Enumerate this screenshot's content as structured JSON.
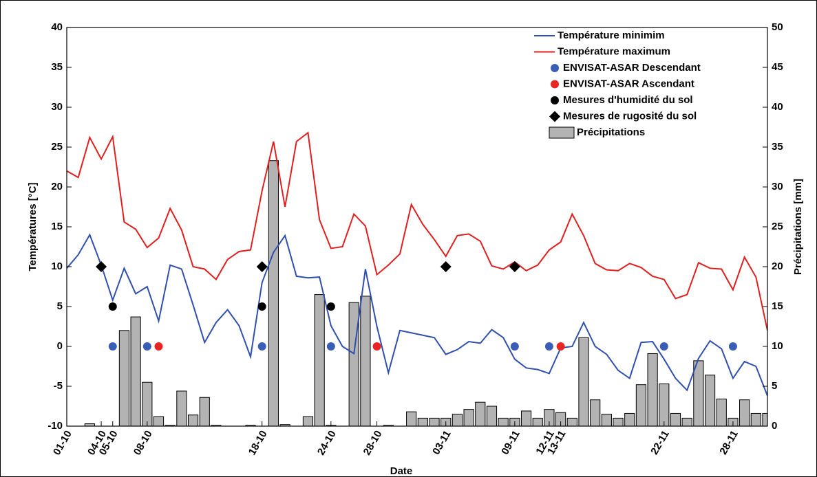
{
  "chart_data": {
    "type": "combo",
    "xlabel": "Date",
    "ylabel": "Températures [°C]",
    "y2label": "Précipitations [mm]",
    "categories": [
      "01-10",
      null,
      null,
      "04-10",
      "05-10",
      null,
      null,
      "08-10",
      null,
      null,
      null,
      null,
      null,
      null,
      null,
      null,
      null,
      "18-10",
      null,
      null,
      null,
      null,
      null,
      "24-10",
      null,
      null,
      null,
      "28-10",
      null,
      null,
      null,
      null,
      null,
      "03-11",
      null,
      null,
      null,
      null,
      null,
      "09-11",
      null,
      null,
      "12-11",
      "13-11",
      null,
      null,
      null,
      null,
      null,
      null,
      null,
      null,
      "22-11",
      null,
      null,
      null,
      null,
      null,
      "28-11",
      null,
      null,
      null
    ],
    "ylim": [
      -10,
      40
    ],
    "yticks": [
      -10,
      -5,
      0,
      5,
      10,
      15,
      20,
      25,
      30,
      35,
      40
    ],
    "y2lim": [
      0,
      50
    ],
    "y2ticks": [
      0,
      5,
      10,
      15,
      20,
      25,
      30,
      35,
      40,
      45,
      50
    ],
    "legend": "upper right",
    "series": [
      {
        "name": "Température minimim",
        "type": "line",
        "color": "#2f4fae",
        "values": [
          9.8,
          11.5,
          14,
          10.2,
          5.8,
          9.8,
          6.6,
          7.5,
          3.2,
          10.2,
          9.7,
          5.2,
          0.5,
          3,
          4.6,
          2.6,
          -1.3,
          8,
          11.8,
          13.9,
          8.8,
          8.6,
          8.7,
          2.6,
          0,
          -0.9,
          9.7,
          2.5,
          -3.3,
          2,
          1.7,
          1.4,
          1.1,
          -1,
          -0.4,
          0.6,
          0.4,
          2.1,
          1.1,
          -1.6,
          -2.7,
          -2.9,
          -3.4,
          -0.2,
          0,
          3,
          0,
          -1,
          -3,
          -4,
          0.5,
          0.6,
          -1.6,
          -4,
          -5.5,
          -1.5,
          0.7,
          -0.3,
          -4,
          -1.9,
          -2.5,
          -6.2
        ]
      },
      {
        "name": "Température maximum",
        "type": "line",
        "color": "#e01e1e",
        "values": [
          22,
          21.2,
          26.2,
          23.5,
          26.3,
          15.6,
          14.7,
          12.4,
          13.6,
          17.3,
          14.6,
          10,
          9.7,
          8.4,
          10.9,
          11.9,
          12.1,
          19.5,
          25.7,
          17.5,
          25.7,
          26.8,
          15.9,
          12.3,
          12.5,
          16.6,
          15.1,
          9,
          10.2,
          11.6,
          17.8,
          15.3,
          13.4,
          11.3,
          13.9,
          14.1,
          13.2,
          10.1,
          9.7,
          10.6,
          9.5,
          10.2,
          12.1,
          13.1,
          16.6,
          13.9,
          10.4,
          9.6,
          9.5,
          10.4,
          9.9,
          8.8,
          8.4,
          6,
          6.5,
          10.5,
          9.8,
          9.7,
          7.1,
          11.2,
          8.7,
          2
        ]
      },
      {
        "name": "ENVISAT-ASAR Descendant",
        "type": "scatter",
        "marker": "circle",
        "color": "#3a5db5",
        "values": [
          null,
          null,
          null,
          null,
          0,
          null,
          null,
          0,
          null,
          null,
          null,
          null,
          null,
          null,
          null,
          null,
          null,
          0,
          null,
          null,
          null,
          null,
          null,
          0,
          null,
          null,
          null,
          null,
          null,
          null,
          null,
          null,
          null,
          null,
          null,
          null,
          null,
          null,
          null,
          0,
          null,
          null,
          0,
          null,
          null,
          null,
          null,
          null,
          null,
          null,
          null,
          null,
          0,
          null,
          null,
          null,
          null,
          null,
          0,
          null,
          null,
          null
        ]
      },
      {
        "name": "ENVISAT-ASAR Ascendant",
        "type": "scatter",
        "marker": "circle",
        "color": "#e82525",
        "values": [
          null,
          null,
          null,
          null,
          null,
          null,
          null,
          null,
          0,
          null,
          null,
          null,
          null,
          null,
          null,
          null,
          null,
          null,
          null,
          null,
          null,
          null,
          null,
          null,
          null,
          null,
          null,
          0,
          null,
          null,
          null,
          null,
          null,
          null,
          null,
          null,
          null,
          null,
          null,
          null,
          null,
          null,
          null,
          0,
          null,
          null,
          null,
          null,
          null,
          null,
          null,
          null,
          null,
          null,
          null,
          null,
          null,
          null,
          null,
          null,
          null,
          null
        ]
      },
      {
        "name": "Mesures d'humidité du sol",
        "type": "scatter",
        "marker": "circle",
        "color": "#000000",
        "values": [
          null,
          null,
          null,
          null,
          5,
          null,
          null,
          null,
          null,
          null,
          null,
          null,
          null,
          null,
          null,
          null,
          null,
          5,
          null,
          null,
          null,
          null,
          null,
          5,
          null,
          null,
          null,
          null,
          null,
          null,
          null,
          null,
          null,
          null,
          null,
          null,
          null,
          null,
          null,
          null,
          null,
          null,
          null,
          null,
          null,
          null,
          null,
          null,
          null,
          null,
          null,
          null,
          null,
          null,
          null,
          null,
          null,
          null,
          null,
          null,
          null,
          null
        ]
      },
      {
        "name": "Mesures de rugosité du sol",
        "type": "scatter",
        "marker": "diamond",
        "color": "#000000",
        "values": [
          null,
          null,
          null,
          10,
          null,
          null,
          null,
          null,
          null,
          null,
          null,
          null,
          null,
          null,
          null,
          null,
          null,
          10,
          null,
          null,
          null,
          null,
          null,
          null,
          null,
          null,
          null,
          null,
          null,
          null,
          null,
          null,
          null,
          10,
          null,
          null,
          null,
          null,
          null,
          10,
          null,
          null,
          null,
          null,
          null,
          null,
          null,
          null,
          null,
          null,
          null,
          null,
          null,
          null,
          null,
          null,
          null,
          null,
          null,
          null,
          null,
          null
        ]
      },
      {
        "name": "Précipitations",
        "type": "bar",
        "axis": "y2",
        "color": "#b3b3b3",
        "values": [
          null,
          null,
          0.3,
          null,
          null,
          12,
          13.7,
          5.5,
          1.2,
          0.1,
          4.4,
          1.4,
          3.6,
          0.1,
          null,
          null,
          0.1,
          null,
          33.3,
          0.2,
          null,
          1.2,
          16.5,
          0.1,
          null,
          15.5,
          16.3,
          null,
          0.1,
          null,
          1.8,
          1,
          1,
          1,
          1.5,
          2.1,
          3,
          2.5,
          1,
          1,
          1.9,
          1,
          2.1,
          1.7,
          1,
          11.1,
          3.3,
          1.5,
          1,
          1.6,
          5.2,
          9.1,
          5.3,
          1.6,
          1,
          8.2,
          6.4,
          3.4,
          1,
          3.3,
          1.6,
          1.6
        ]
      }
    ]
  }
}
